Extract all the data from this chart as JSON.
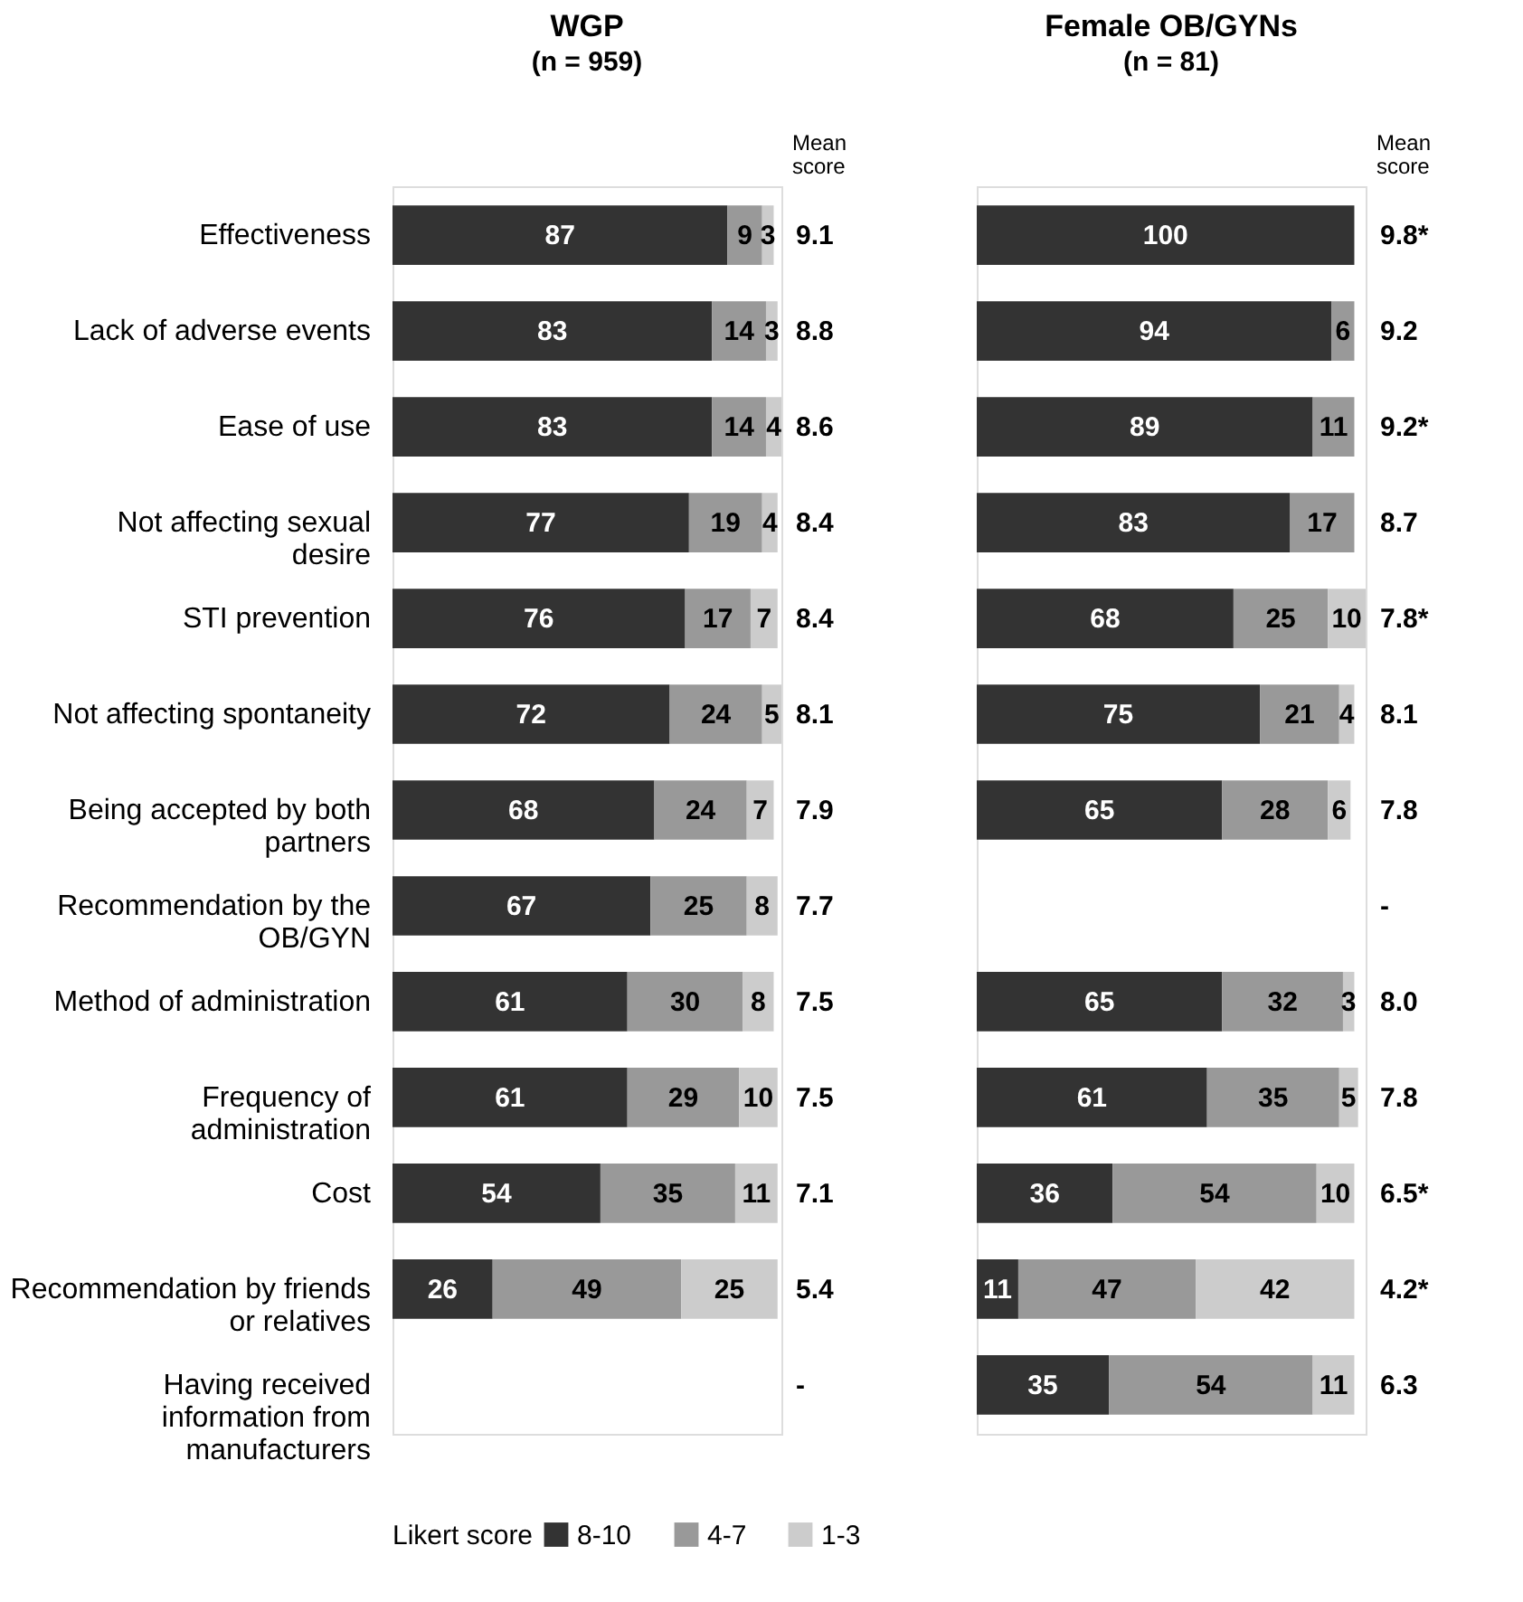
{
  "chart_data": [
    {
      "type": "bar",
      "orientation": "horizontal",
      "stacked": true,
      "data_labels": true,
      "grid": false,
      "tick_labels": "y",
      "legend": "bottom",
      "legend_title": "Likert score",
      "title": "WGP",
      "subtitle": "(n = 959)",
      "annotations": [
        "Mean score",
        "9.1",
        "8.8",
        "8.6",
        "8.4",
        "8.4",
        "8.1",
        "7.9",
        "7.7",
        "7.5",
        "7.5",
        "7.1",
        "5.4",
        "-"
      ],
      "categories": [
        "Effectiveness",
        "Lack of adverse events",
        "Ease of use",
        "Not affecting sexual desire",
        "STI prevention",
        "Not affecting spontaneity",
        "Being accepted by both partners",
        "Recommendation by the OB/GYN",
        "Method of administration",
        "Frequency of administration",
        "Cost",
        "Recommendation by friends or relatives",
        "Having received information from manufacturers"
      ],
      "series": [
        {
          "name": "8-10",
          "color": "#333333",
          "values": [
            87,
            83,
            83,
            77,
            76,
            72,
            68,
            67,
            61,
            61,
            54,
            26,
            null
          ]
        },
        {
          "name": "4-7",
          "color": "#999999",
          "values": [
            9,
            14,
            14,
            19,
            17,
            24,
            24,
            25,
            30,
            29,
            35,
            49,
            null
          ]
        },
        {
          "name": "1-3",
          "color": "#cccccc",
          "values": [
            3,
            3,
            4,
            4,
            7,
            5,
            7,
            8,
            8,
            10,
            11,
            25,
            null
          ]
        }
      ]
    },
    {
      "type": "bar",
      "orientation": "horizontal",
      "stacked": true,
      "data_labels": true,
      "grid": false,
      "tick_labels": false,
      "title": "Female OB/GYNs",
      "subtitle": "(n = 81)",
      "annotations": [
        "Mean score",
        "9.8*",
        "9.2",
        "9.2*",
        "8.7",
        "7.8*",
        "8.1",
        "7.8",
        "-",
        "8.0",
        "7.8",
        "6.5*",
        "4.2*",
        "6.3"
      ],
      "categories": [
        "Effectiveness",
        "Lack of adverse events",
        "Ease of use",
        "Not affecting sexual desire",
        "STI prevention",
        "Not affecting spontaneity",
        "Being accepted by both partners",
        "Recommendation by the OB/GYN",
        "Method of administration",
        "Frequency of administration",
        "Cost",
        "Recommendation by friends or relatives",
        "Having received information from manufacturers"
      ],
      "series": [
        {
          "name": "8-10",
          "color": "#333333",
          "values": [
            100,
            94,
            89,
            83,
            68,
            75,
            65,
            null,
            65,
            61,
            36,
            11,
            35
          ]
        },
        {
          "name": "4-7",
          "color": "#999999",
          "values": [
            null,
            6,
            11,
            17,
            25,
            21,
            28,
            null,
            32,
            35,
            54,
            47,
            54
          ]
        },
        {
          "name": "1-3",
          "color": "#cccccc",
          "values": [
            null,
            null,
            null,
            null,
            10,
            4,
            6,
            null,
            3,
            5,
            10,
            42,
            11
          ]
        }
      ]
    }
  ]
}
